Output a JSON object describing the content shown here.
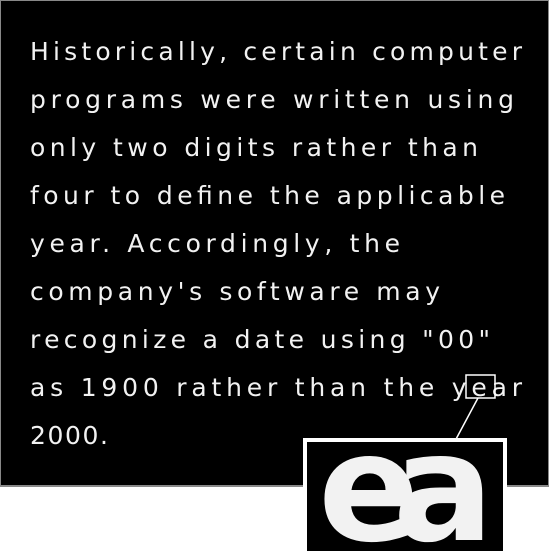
{
  "lines": [
    "Historically, certain computer",
    "programs were written using",
    "only two digits rather than",
    "four to define the applicable",
    "year. Accordingly, the",
    "company's software may",
    "recognize a date using \"00\"",
    "as 1900 rather than the year",
    "2000."
  ],
  "zoom": {
    "text": "ea"
  }
}
